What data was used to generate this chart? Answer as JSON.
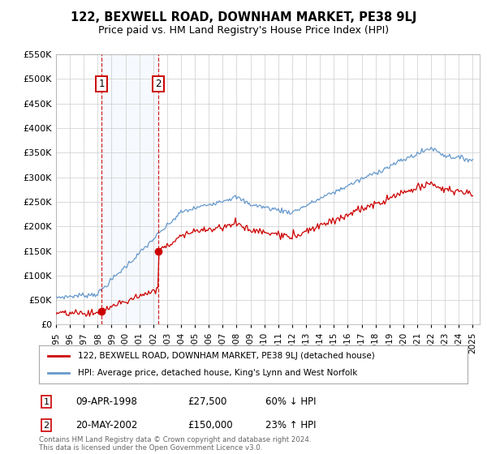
{
  "title": "122, BEXWELL ROAD, DOWNHAM MARKET, PE38 9LJ",
  "subtitle": "Price paid vs. HM Land Registry's House Price Index (HPI)",
  "legend_line1": "122, BEXWELL ROAD, DOWNHAM MARKET, PE38 9LJ (detached house)",
  "legend_line2": "HPI: Average price, detached house, King's Lynn and West Norfolk",
  "sale1_date_str": "09-APR-1998",
  "sale1_price": 27500,
  "sale1_hpi_rel": "60% ↓ HPI",
  "sale1_year": 1998.27,
  "sale2_date_str": "20-MAY-2002",
  "sale2_price": 150000,
  "sale2_hpi_rel": "23% ↑ HPI",
  "sale2_year": 2002.38,
  "xmin": 1995,
  "xmax": 2025.5,
  "ymin": 0,
  "ymax": 550000,
  "yticks": [
    0,
    50000,
    100000,
    150000,
    200000,
    250000,
    300000,
    350000,
    400000,
    450000,
    500000,
    550000
  ],
  "property_color": "#cc0000",
  "hpi_color": "#6699cc",
  "vline_color": "#cc0000",
  "background_color": "#ffffff",
  "grid_color": "#cccccc",
  "footnote": "Contains HM Land Registry data © Crown copyright and database right 2024.\nThis data is licensed under the Open Government Licence v3.0."
}
